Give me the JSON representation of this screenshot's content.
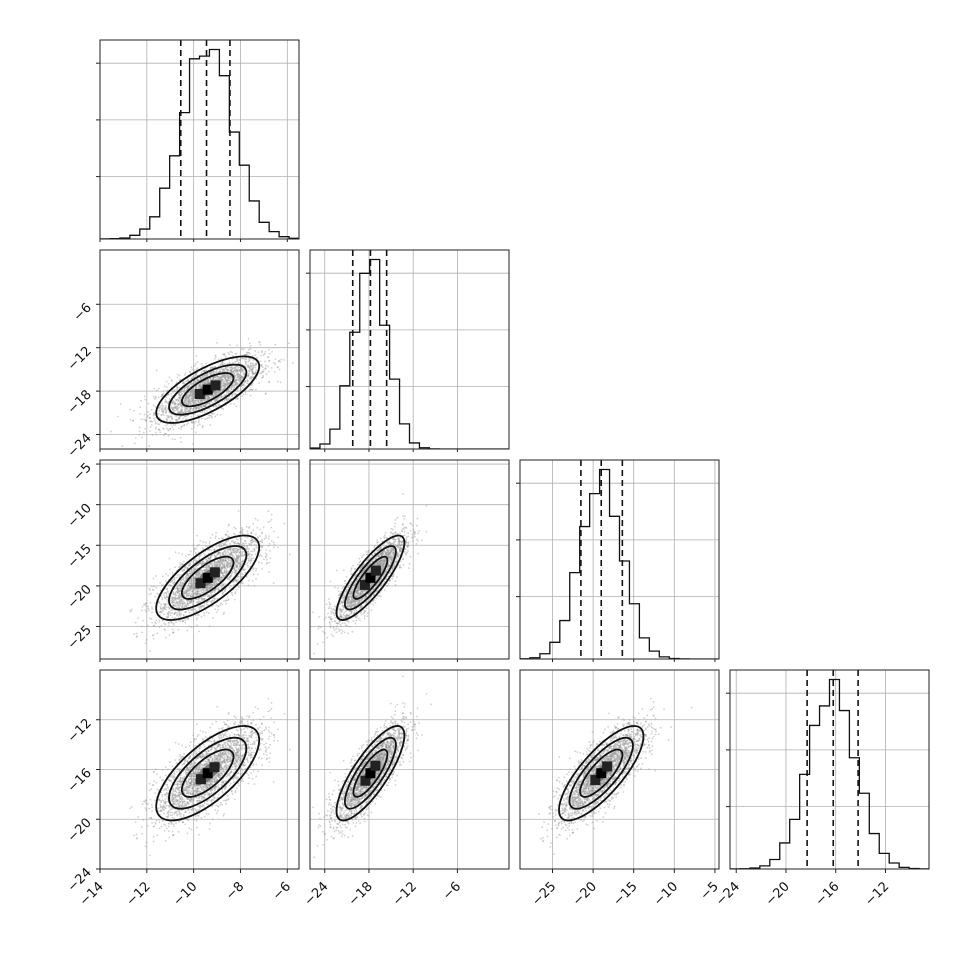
{
  "chart_data": {
    "type": "corner",
    "title": "",
    "grid": true,
    "colors": {
      "line": "#111111",
      "grid": "#b0b0b0",
      "scatter": "#999999",
      "density_dark": "#000000",
      "density_light": "#d0d0d0"
    },
    "parameters": [
      {
        "name": "",
        "xlim": [
          -14,
          -5.5
        ],
        "xticks": [
          -14,
          -12,
          -10,
          -8,
          -6
        ],
        "tick_labels": [
          "−14",
          "−12",
          "−10",
          "−8",
          "−6"
        ],
        "mean": -9.4,
        "sd": 1.1,
        "quantiles": [
          -10.55,
          -9.45,
          -8.45
        ]
      },
      {
        "name": "",
        "xlim": [
          -26,
          1
        ],
        "xticks": [
          -24,
          -18,
          -12,
          -6
        ],
        "tick_labels": [
          "−24",
          "−18",
          "−12",
          "−6"
        ],
        "mean": -17.8,
        "sd": 2.3,
        "quantiles": [
          -20.2,
          -17.8,
          -15.6
        ]
      },
      {
        "name": "",
        "xlim": [
          -29,
          -4.5
        ],
        "xticks": [
          -25,
          -20,
          -15,
          -10,
          -5
        ],
        "tick_labels": [
          "−25",
          "−20",
          "−15",
          "−10",
          "−5"
        ],
        "mean": -19.0,
        "sd": 2.6,
        "quantiles": [
          -21.5,
          -19.0,
          -16.4
        ]
      },
      {
        "name": "",
        "xlim": [
          -24.5,
          -8.5
        ],
        "xticks": [
          -24,
          -20,
          -16,
          -12
        ],
        "tick_labels": [
          "−24",
          "−20",
          "−16",
          "−12"
        ],
        "mean": -16.3,
        "sd": 1.9,
        "quantiles": [
          -18.3,
          -16.2,
          -14.2
        ]
      }
    ],
    "row_ylim": [
      null,
      [
        -26,
        1.5
      ],
      [
        -29,
        -4.5
      ],
      [
        -24,
        -8
      ]
    ],
    "row_yticks": [
      null,
      [
        -24,
        -18,
        -12,
        -6
      ],
      [
        -25,
        -20,
        -15,
        -10,
        -5
      ],
      [
        -24,
        -20,
        -16,
        -12
      ]
    ],
    "row_ytick_labels": [
      null,
      [
        "−24",
        "−18",
        "−12",
        "−6"
      ],
      [
        "−25",
        "−20",
        "−15",
        "−10",
        "−5"
      ],
      [
        "−24",
        "−20",
        "−16",
        "−12"
      ]
    ],
    "correlations": {
      "1_0": 0.7,
      "2_0": 0.72,
      "2_1": 0.83,
      "3_0": 0.7,
      "3_1": 0.8,
      "3_2": 0.78
    },
    "hist_bins": 20,
    "samples_per_panel": 2500,
    "contour_levels": [
      0.5,
      1.0,
      1.5,
      2.0
    ]
  }
}
